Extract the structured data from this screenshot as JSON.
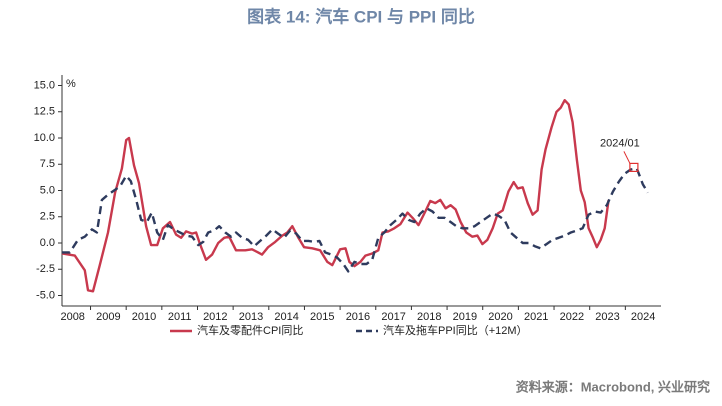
{
  "chart_data": {
    "type": "line",
    "title": "图表 14: 汽车 CPI 与 PPI 同比",
    "y_unit": "%",
    "source": "资料来源：Macrobond, 兴业研究",
    "xlim": [
      2008.2,
      2025
    ],
    "xticks": [
      2008,
      2009,
      2010,
      2011,
      2012,
      2013,
      2014,
      2015,
      2016,
      2017,
      2018,
      2019,
      2020,
      2021,
      2022,
      2023,
      2024
    ],
    "ylim": [
      -6,
      16
    ],
    "yticks": [
      {
        "value": -5,
        "label": "-5.0"
      },
      {
        "value": -2.5,
        "label": "-2.5"
      },
      {
        "value": 0,
        "label": "0.0"
      },
      {
        "value": 2.5,
        "label": "2.5"
      },
      {
        "value": 5,
        "label": "5.0"
      },
      {
        "value": 7.5,
        "label": "7.5"
      },
      {
        "value": 10,
        "label": "10.0"
      },
      {
        "value": 12.5,
        "label": "12.5"
      },
      {
        "value": 15,
        "label": "15.0"
      }
    ],
    "annotation": {
      "text": "2024/01",
      "x": 2024.24,
      "y": 7.2
    },
    "series": [
      {
        "name": "汽车及零配件CPI同比",
        "color": "#c8394d",
        "dash": false,
        "x": [
          2008.2,
          2008.56,
          2008.84,
          2008.93,
          2009.07,
          2009.26,
          2009.49,
          2009.69,
          2009.88,
          2010.0,
          2010.08,
          2010.22,
          2010.36,
          2010.56,
          2010.7,
          2010.87,
          2011.03,
          2011.23,
          2011.4,
          2011.54,
          2011.68,
          2011.85,
          2011.96,
          2012.07,
          2012.24,
          2012.41,
          2012.58,
          2012.75,
          2012.89,
          2013.08,
          2013.34,
          2013.53,
          2013.7,
          2013.81,
          2013.98,
          2014.18,
          2014.38,
          2014.52,
          2014.66,
          2014.83,
          2014.99,
          2015.22,
          2015.44,
          2015.64,
          2015.78,
          2016.0,
          2016.15,
          2016.26,
          2016.4,
          2016.57,
          2016.71,
          2016.9,
          2017.07,
          2017.19,
          2017.35,
          2017.52,
          2017.69,
          2017.89,
          2018.03,
          2018.2,
          2018.39,
          2018.53,
          2018.67,
          2018.81,
          2018.96,
          2019.1,
          2019.24,
          2019.38,
          2019.54,
          2019.71,
          2019.85,
          2019.99,
          2020.13,
          2020.28,
          2020.42,
          2020.56,
          2020.72,
          2020.87,
          2020.98,
          2021.12,
          2021.26,
          2021.4,
          2021.54,
          2021.65,
          2021.76,
          2021.93,
          2022.07,
          2022.19,
          2022.3,
          2022.41,
          2022.52,
          2022.64,
          2022.75,
          2022.86,
          2022.97,
          2023.08,
          2023.2,
          2023.31,
          2023.42,
          2023.53
        ],
        "values": [
          -1.0,
          -1.2,
          -2.6,
          -4.5,
          -4.6,
          -2.1,
          1.0,
          4.8,
          7.1,
          9.8,
          10.0,
          7.4,
          5.7,
          1.6,
          -0.2,
          -0.2,
          1.4,
          2.0,
          0.8,
          0.5,
          1.1,
          0.9,
          1.0,
          -0.1,
          -1.6,
          -1.1,
          0,
          0.5,
          0.6,
          -0.7,
          -0.7,
          -0.6,
          -0.9,
          -1.1,
          -0.4,
          0.1,
          0.7,
          1.0,
          1.6,
          0.5,
          -0.4,
          -0.5,
          -0.7,
          -1.8,
          -2.1,
          -0.6,
          -0.5,
          -1.8,
          -2.2,
          -1.8,
          -1.2,
          -1.0,
          -0.7,
          1.0,
          1.1,
          1.4,
          1.8,
          2.9,
          2.4,
          1.7,
          3.0,
          4.0,
          3.8,
          4.1,
          3.3,
          3.6,
          3.2,
          2.0,
          1.0,
          0.6,
          0.7,
          -0.1,
          0.3,
          1.4,
          2.8,
          3.1,
          4.9,
          5.8,
          5.2,
          5.3,
          3.8,
          2.7,
          3.1,
          7.0,
          8.9,
          11.0,
          12.5,
          12.9,
          13.6,
          13.2,
          11.5,
          7.9,
          5.0,
          3.9,
          1.4,
          0.6,
          -0.4,
          0.3,
          1.4,
          4.1
        ]
      },
      {
        "name": "汽车及拖车PPI同比（+12M）",
        "color": "#2e3b5e",
        "dash": true,
        "x": [
          2008.2,
          2008.42,
          2008.65,
          2008.84,
          2009.04,
          2009.18,
          2009.32,
          2009.49,
          2009.66,
          2009.83,
          2010.0,
          2010.13,
          2010.28,
          2010.42,
          2010.58,
          2010.72,
          2010.87,
          2011.03,
          2011.17,
          2011.34,
          2011.51,
          2011.68,
          2011.85,
          2012.02,
          2012.16,
          2012.3,
          2012.47,
          2012.61,
          2012.78,
          2012.94,
          2013.08,
          2013.25,
          2013.42,
          2013.59,
          2013.76,
          2013.93,
          2014.1,
          2014.26,
          2014.43,
          2014.6,
          2014.77,
          2014.94,
          2015.11,
          2015.28,
          2015.42,
          2015.58,
          2015.75,
          2015.92,
          2016.09,
          2016.23,
          2016.4,
          2016.57,
          2016.74,
          2016.9,
          2017.07,
          2017.24,
          2017.41,
          2017.58,
          2017.75,
          2017.92,
          2018.08,
          2018.25,
          2018.42,
          2018.59,
          2018.76,
          2018.93,
          2019.1,
          2019.26,
          2019.43,
          2019.6,
          2019.77,
          2019.94,
          2020.11,
          2020.28,
          2020.44,
          2020.61,
          2020.78,
          2020.95,
          2021.12,
          2021.29,
          2021.46,
          2021.62,
          2021.79,
          2021.96,
          2022.13,
          2022.3,
          2022.47,
          2022.64,
          2022.8,
          2022.97,
          2023.14,
          2023.31,
          2023.48,
          2023.65,
          2023.81,
          2023.98,
          2024.15,
          2024.32,
          2024.49,
          2024.63
        ],
        "values": [
          -0.9,
          -0.9,
          0.3,
          0.6,
          1.3,
          1.0,
          4.1,
          4.6,
          5.0,
          5.4,
          6.4,
          5.9,
          4.1,
          2.2,
          2.0,
          2.9,
          1.0,
          0.3,
          1.7,
          1.3,
          1.0,
          0.7,
          0.6,
          -0.2,
          0.1,
          1.0,
          1.2,
          1.6,
          1.0,
          0.6,
          1.0,
          0.5,
          0.3,
          -0.3,
          0.2,
          0.7,
          1.3,
          0.9,
          0.5,
          1.2,
          0.9,
          0.2,
          0.2,
          0.1,
          0.2,
          -0.9,
          -1.1,
          -1.4,
          -2.0,
          -2.7,
          -1.8,
          -2.0,
          -2.0,
          -1.6,
          0.5,
          1.0,
          1.7,
          2.2,
          2.8,
          2.2,
          2.0,
          2.8,
          3.3,
          3.0,
          2.4,
          2.4,
          2.0,
          1.6,
          1.4,
          1.4,
          1.6,
          2.0,
          2.4,
          2.8,
          2.6,
          2.2,
          1.0,
          0.5,
          0,
          0,
          -0.3,
          -0.5,
          -0.1,
          0.3,
          0.5,
          0.7,
          1.0,
          1.2,
          1.4,
          2.7,
          3.0,
          2.9,
          3.6,
          4.9,
          5.8,
          6.6,
          7.0,
          7.1,
          5.6,
          4.8
        ]
      }
    ]
  }
}
